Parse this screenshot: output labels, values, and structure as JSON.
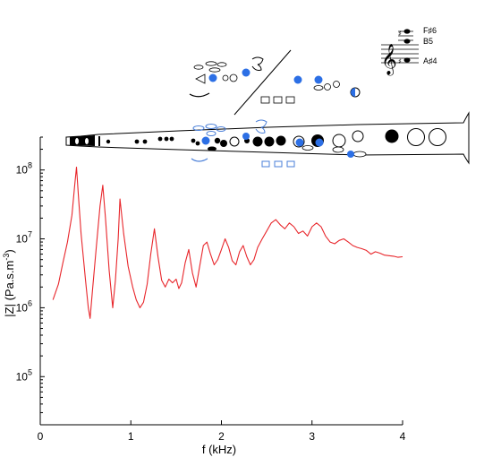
{
  "chart_data": {
    "type": "line",
    "title": "",
    "xlabel": "f (kHz)",
    "ylabel": "|Z| (Pa.s.m",
    "ylabel_sup": "-3",
    "ylabel_close": ")",
    "xlim": [
      0,
      4
    ],
    "ylim": [
      20000,
      300000000
    ],
    "yscale": "log",
    "xticks": [
      0,
      1,
      2,
      3,
      4
    ],
    "xtick_labels": [
      "0",
      "1",
      "2",
      "3",
      "4"
    ],
    "yticks": [
      100000,
      1000000,
      10000000,
      100000000
    ],
    "ytick_labels": [
      {
        "base": "10",
        "exp": "5"
      },
      {
        "base": "10",
        "exp": "6"
      },
      {
        "base": "10",
        "exp": "7"
      },
      {
        "base": "10",
        "exp": "8"
      }
    ],
    "grid": false,
    "series": [
      {
        "color": "#e8262b",
        "x": [
          0.14,
          0.2,
          0.25,
          0.3,
          0.35,
          0.38,
          0.4,
          0.42,
          0.45,
          0.5,
          0.53,
          0.55,
          0.58,
          0.62,
          0.66,
          0.69,
          0.72,
          0.76,
          0.8,
          0.83,
          0.86,
          0.88,
          0.92,
          0.97,
          1.02,
          1.06,
          1.1,
          1.14,
          1.18,
          1.22,
          1.26,
          1.3,
          1.34,
          1.38,
          1.42,
          1.46,
          1.5,
          1.53,
          1.56,
          1.6,
          1.64,
          1.68,
          1.72,
          1.76,
          1.8,
          1.84,
          1.88,
          1.92,
          1.96,
          2.0,
          2.04,
          2.08,
          2.12,
          2.16,
          2.2,
          2.24,
          2.28,
          2.32,
          2.36,
          2.4,
          2.45,
          2.5,
          2.55,
          2.6,
          2.65,
          2.7,
          2.75,
          2.8,
          2.85,
          2.9,
          2.95,
          3.0,
          3.05,
          3.1,
          3.15,
          3.2,
          3.25,
          3.3,
          3.35,
          3.4,
          3.45,
          3.5,
          3.55,
          3.6,
          3.65,
          3.7,
          3.75,
          3.8,
          3.85,
          3.9,
          3.95,
          4.0
        ],
        "y": [
          1300000,
          2200000,
          4500000,
          9000000,
          22000000,
          60000000,
          110000000,
          45000000,
          12000000,
          2500000,
          1000000,
          700000,
          2000000,
          8000000,
          30000000,
          60000000,
          20000000,
          3500000,
          1000000,
          2500000,
          10000000,
          38000000,
          12000000,
          4000000,
          2000000,
          1300000,
          1000000,
          1200000,
          2200000,
          6000000,
          14000000,
          5500000,
          2500000,
          2000000,
          2600000,
          2300000,
          2600000,
          1900000,
          2300000,
          4500000,
          7000000,
          3200000,
          2000000,
          4000000,
          8000000,
          9000000,
          6000000,
          4200000,
          5000000,
          7000000,
          10000000,
          7500000,
          4800000,
          4200000,
          6500000,
          8000000,
          5500000,
          4200000,
          5000000,
          7500000,
          10000000,
          13000000,
          17000000,
          19000000,
          16000000,
          14000000,
          17000000,
          15000000,
          12000000,
          13000000,
          11000000,
          15000000,
          17000000,
          15000000,
          11000000,
          9000000,
          8500000,
          9500000,
          10000000,
          9000000,
          8000000,
          7500000,
          7200000,
          6800000,
          6000000,
          6500000,
          6200000,
          5800000,
          5700000,
          5600000,
          5400000,
          5500000
        ]
      }
    ]
  },
  "notation": {
    "notes": [
      "F♯6",
      "B5",
      "A♯4"
    ]
  },
  "colors": {
    "curve": "#e8262b",
    "accent": "#2c6fe5",
    "accent_light": "#4a7fd8",
    "ink": "#000000"
  }
}
